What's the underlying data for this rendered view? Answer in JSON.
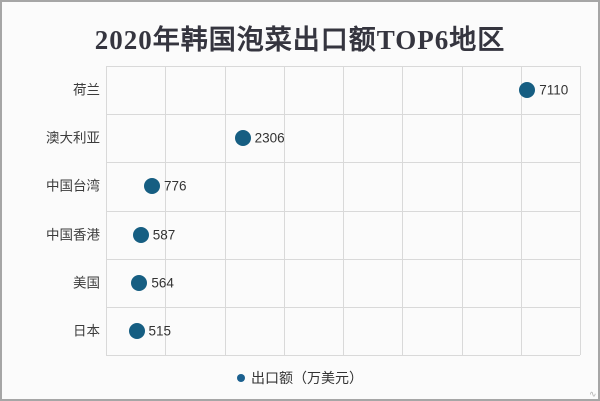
{
  "chart": {
    "title": "2020年韩国泡菜出口额TOP6地区",
    "legend_label": "出口额（万美元）"
  },
  "colors": {
    "dot": "#165e82",
    "legend_dot": "#1b608f",
    "grid": "#d9d9d9",
    "title_text": "#35353f",
    "category_text": "#3c3c3c",
    "value_text": "#333333",
    "panel_border": "#a6a6a6",
    "background": "#fbfbfb"
  },
  "chart_data": {
    "type": "scatter",
    "orientation": "horizontal",
    "title": "2020年韩国泡菜出口额TOP6地区",
    "categories": [
      "荷兰",
      "澳大利亚",
      "中国台湾",
      "中国香港",
      "美国",
      "日本"
    ],
    "values": [
      7110,
      2306,
      776,
      587,
      564,
      515
    ],
    "series": [
      {
        "name": "出口额（万美元）",
        "values": [
          7110,
          2306,
          776,
          587,
          564,
          515
        ]
      }
    ],
    "xlabel": "",
    "ylabel": "",
    "xlim": [
      0,
      8000
    ],
    "x_grid_interval": 1000,
    "grid": true,
    "x_tick_labels_shown": false,
    "value_labels_shown": true,
    "legend_position": "bottom"
  }
}
